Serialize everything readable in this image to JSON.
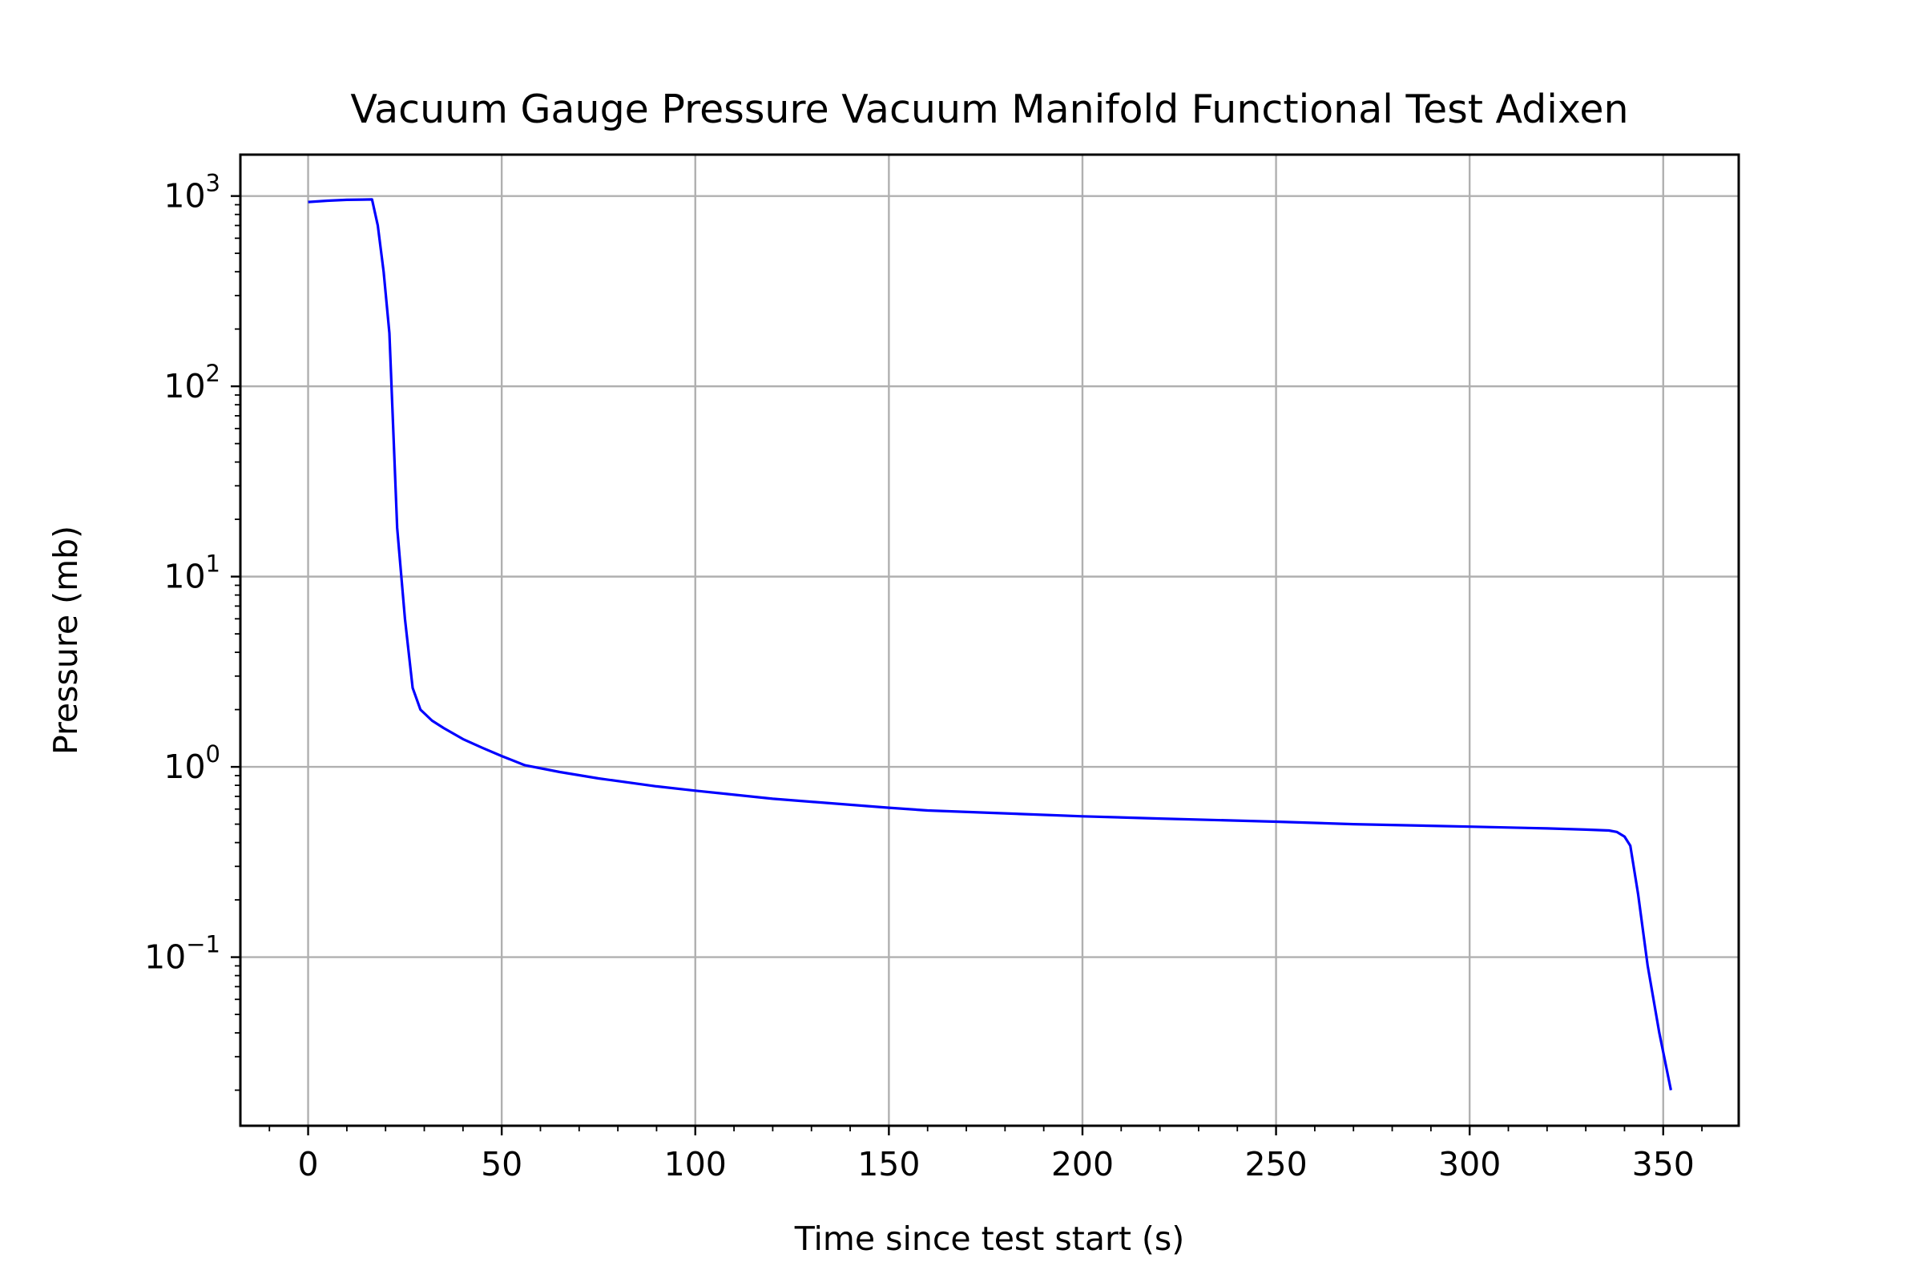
{
  "chart_data": {
    "type": "line",
    "title": "Vacuum Gauge Pressure Vacuum Manifold Functional Test Adixen",
    "xlabel": "Time since test start (s)",
    "ylabel": "Pressure (mb)",
    "xlim": [
      -17.5,
      369.5
    ],
    "ylim": [
      0.013,
      1650
    ],
    "yscale": "log",
    "grid": true,
    "x_ticks": [
      0,
      50,
      100,
      150,
      200,
      250,
      300,
      350
    ],
    "y_ticks": [
      {
        "value": 0.1,
        "base": "10",
        "exp": "−1"
      },
      {
        "value": 1,
        "base": "10",
        "exp": "0"
      },
      {
        "value": 10,
        "base": "10",
        "exp": "1"
      },
      {
        "value": 100,
        "base": "10",
        "exp": "2"
      },
      {
        "value": 1000,
        "base": "10",
        "exp": "3"
      }
    ],
    "series": [
      {
        "color": "#0000ff",
        "x": [
          0,
          5,
          10,
          14,
          16.5,
          18,
          19.5,
          21,
          23,
          25,
          27,
          29,
          32,
          35,
          40,
          45,
          50,
          56,
          65,
          75,
          90,
          100,
          120,
          150,
          160,
          200,
          220,
          250,
          270,
          300,
          320,
          330,
          336,
          338,
          340,
          341.5,
          343.5,
          346,
          349,
          352
        ],
        "y": [
          930,
          945,
          955,
          958,
          960,
          700,
          400,
          190,
          18,
          6,
          2.6,
          2.0,
          1.75,
          1.6,
          1.4,
          1.26,
          1.14,
          1.02,
          0.94,
          0.87,
          0.79,
          0.75,
          0.68,
          0.61,
          0.59,
          0.55,
          0.535,
          0.515,
          0.5,
          0.485,
          0.475,
          0.468,
          0.463,
          0.455,
          0.43,
          0.385,
          0.215,
          0.09,
          0.04,
          0.02
        ]
      }
    ]
  }
}
